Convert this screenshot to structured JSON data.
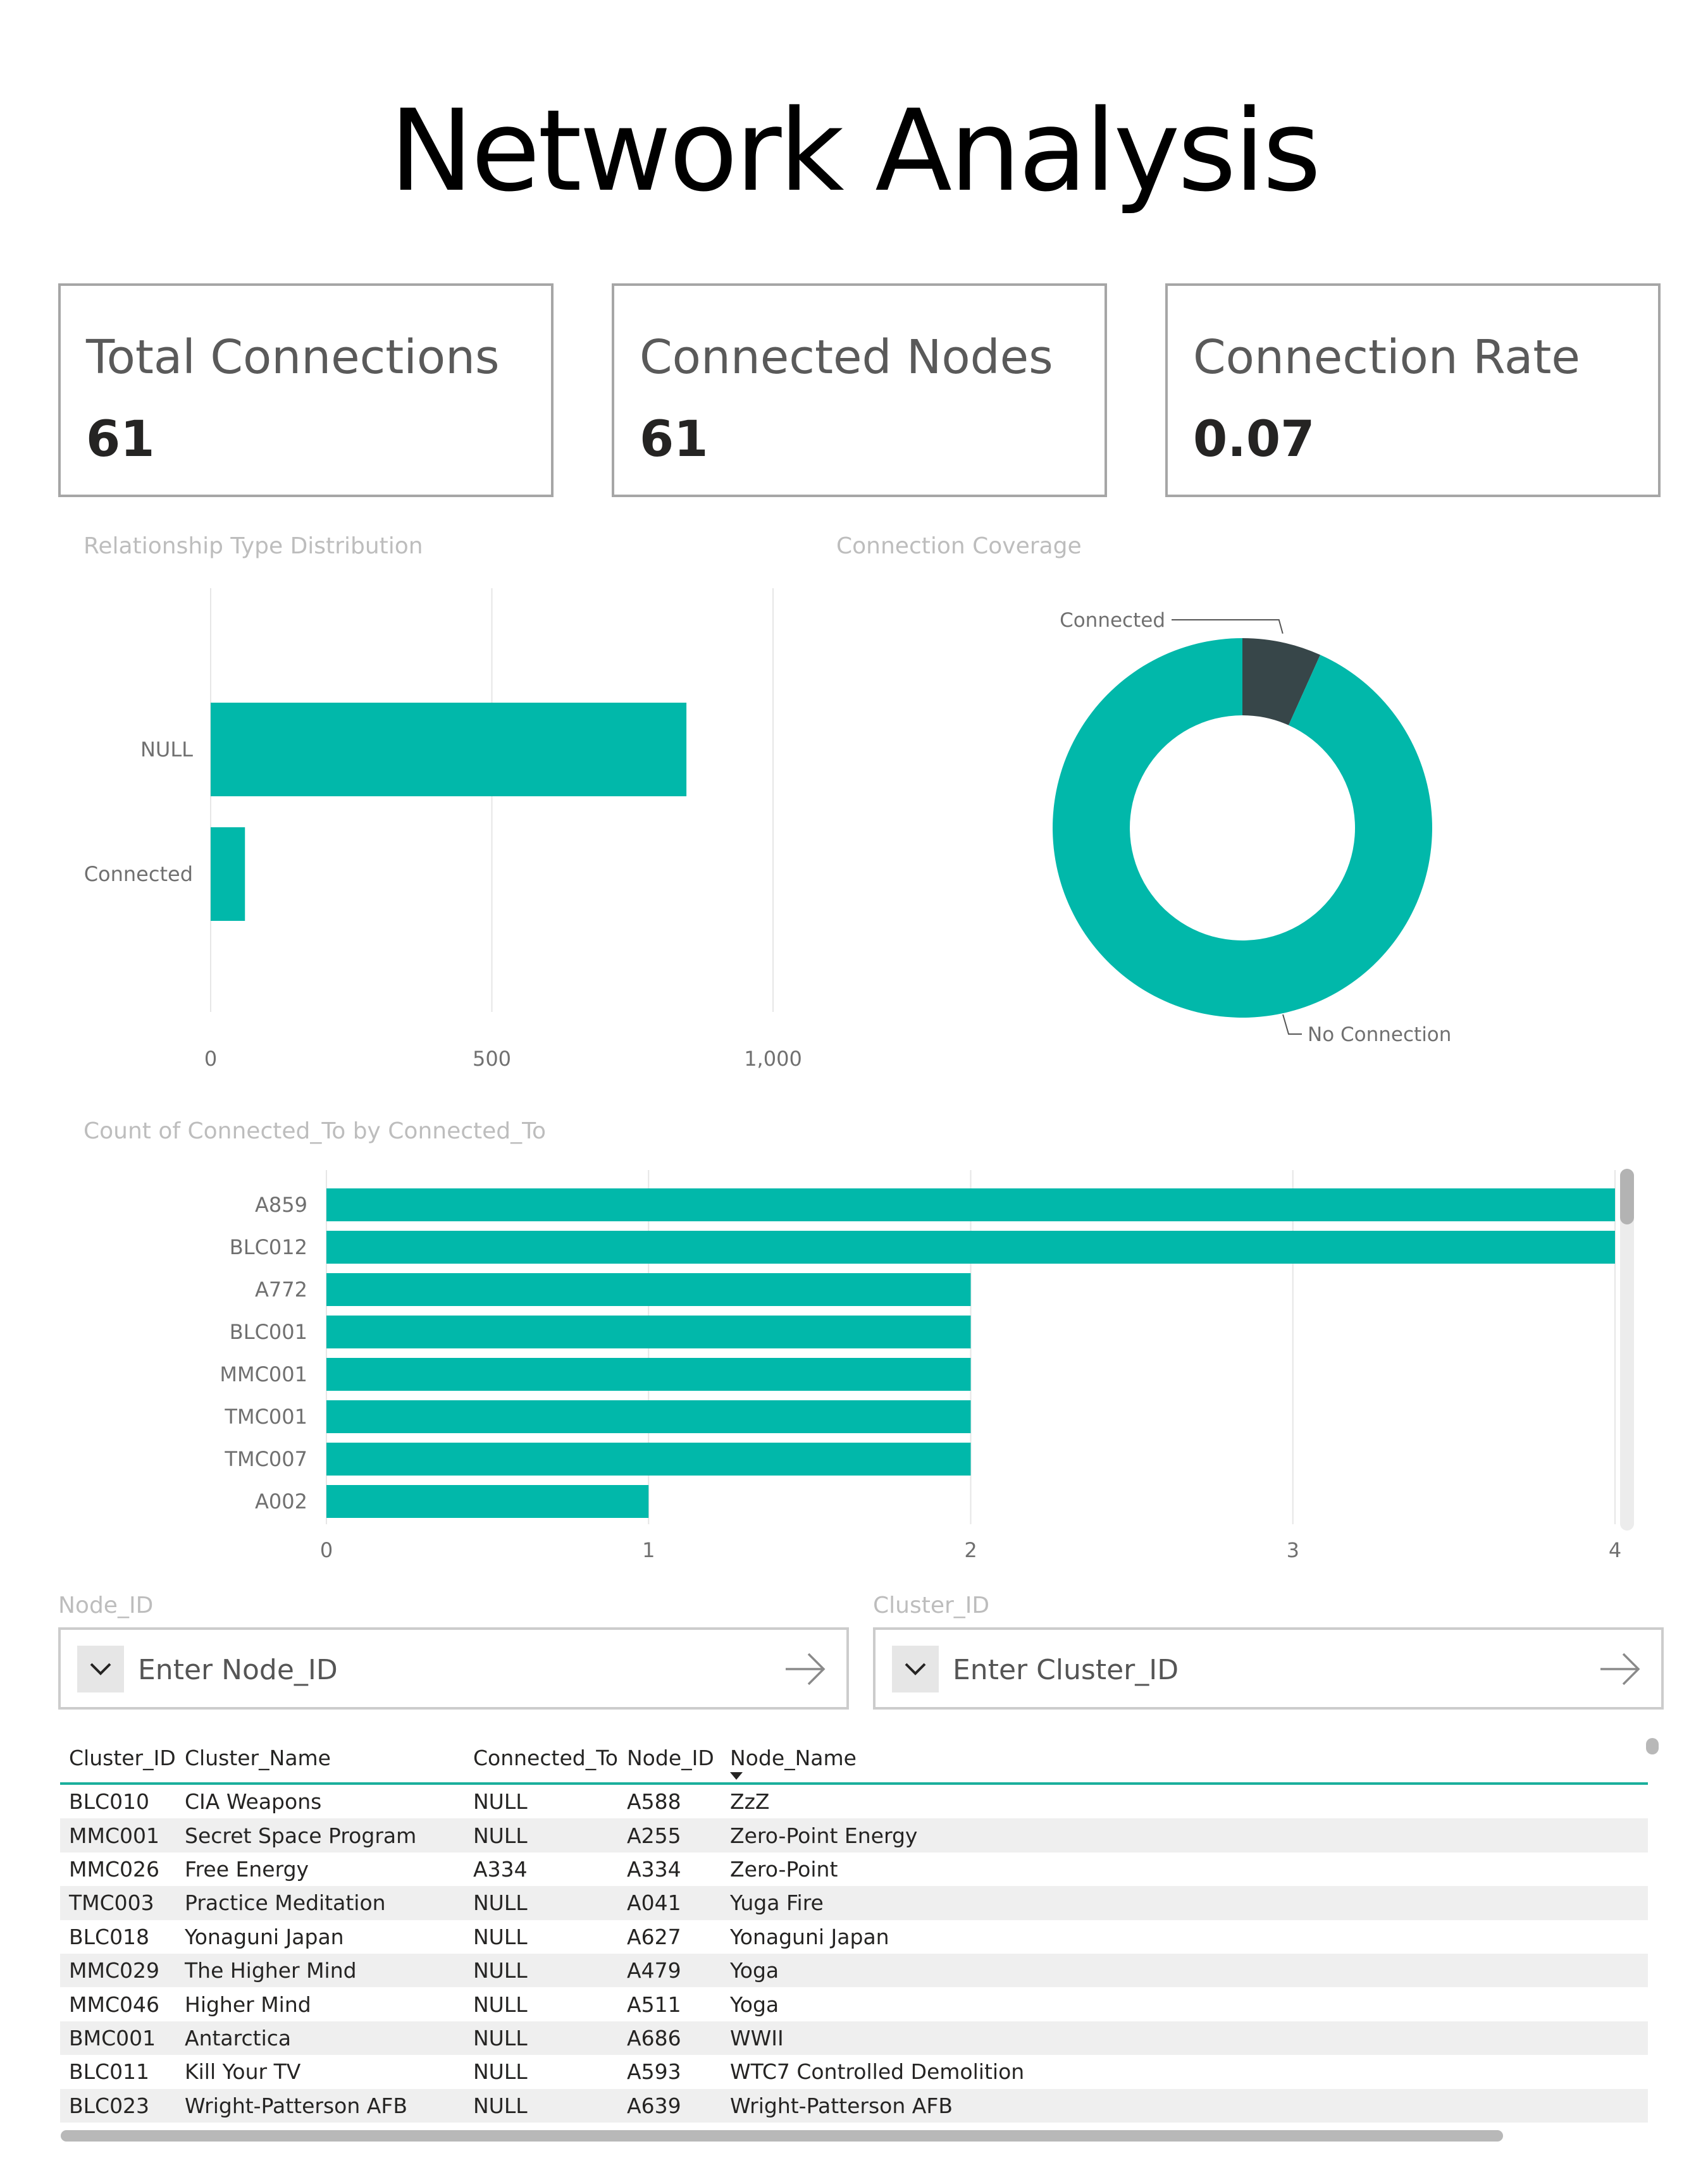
{
  "page": {
    "title": "Network Analysis"
  },
  "kpis": [
    {
      "label": "Total Connections",
      "value": "61"
    },
    {
      "label": "Connected Nodes",
      "value": "61"
    },
    {
      "label": "Connection Rate",
      "value": "0.07"
    }
  ],
  "colors": {
    "teal": "#01b8aa",
    "dark": "#374649",
    "header_rule": "#1aaf9c",
    "row_alt": "#efefef"
  },
  "relationship_chart": {
    "title": "Relationship Type Distribution"
  },
  "coverage_chart": {
    "title": "Connection Coverage"
  },
  "connected_to_chart": {
    "title": "Count of Connected_To by Connected_To"
  },
  "chart_data": [
    {
      "type": "bar",
      "orientation": "horizontal",
      "title": "Relationship Type Distribution",
      "categories": [
        "NULL",
        "Connected"
      ],
      "values": [
        846,
        61
      ],
      "xlim": [
        0,
        1000
      ],
      "xticks": [
        "0",
        "500",
        "1,000"
      ],
      "grid": true
    },
    {
      "type": "pie",
      "donut": true,
      "title": "Connection Coverage",
      "labels": [
        "Connected",
        "No Connection"
      ],
      "values": [
        61,
        846
      ],
      "colors": [
        "#374649",
        "#01b8aa"
      ]
    },
    {
      "type": "bar",
      "orientation": "horizontal",
      "title": "Count of Connected_To by Connected_To",
      "categories": [
        "A859",
        "BLC012",
        "A772",
        "BLC001",
        "MMC001",
        "TMC001",
        "TMC007",
        "A002"
      ],
      "values": [
        4,
        4,
        2,
        2,
        2,
        2,
        2,
        1
      ],
      "xlim": [
        0,
        4
      ],
      "xticks": [
        "0",
        "1",
        "2",
        "3",
        "4"
      ],
      "grid": true
    }
  ],
  "slicers": {
    "node": {
      "label": "Node_ID",
      "placeholder": "Enter Node_ID"
    },
    "cluster": {
      "label": "Cluster_ID",
      "placeholder": "Enter Cluster_ID"
    }
  },
  "table": {
    "columns": [
      "Cluster_ID",
      "Cluster_Name",
      "Connected_To",
      "Node_ID",
      "Node_Name"
    ],
    "sorted_column": "Node_Name",
    "rows": [
      [
        "BLC010",
        "CIA Weapons",
        "NULL",
        "A588",
        "ZzZ"
      ],
      [
        "MMC001",
        "Secret Space Program",
        "NULL",
        "A255",
        "Zero-Point Energy"
      ],
      [
        "MMC026",
        "Free Energy",
        "A334",
        "A334",
        "Zero-Point"
      ],
      [
        "TMC003",
        "Practice Meditation",
        "NULL",
        "A041",
        "Yuga Fire"
      ],
      [
        "BLC018",
        "Yonaguni Japan",
        "NULL",
        "A627",
        "Yonaguni Japan"
      ],
      [
        "MMC029",
        "The Higher Mind",
        "NULL",
        "A479",
        "Yoga"
      ],
      [
        "MMC046",
        "Higher Mind",
        "NULL",
        "A511",
        "Yoga"
      ],
      [
        "BMC001",
        "Antarctica",
        "NULL",
        "A686",
        "WWII"
      ],
      [
        "BLC011",
        "Kill Your TV",
        "NULL",
        "A593",
        "WTC7 Controlled Demolition"
      ],
      [
        "BLC023",
        "Wright-Patterson AFB",
        "NULL",
        "A639",
        "Wright-Patterson AFB"
      ]
    ]
  }
}
